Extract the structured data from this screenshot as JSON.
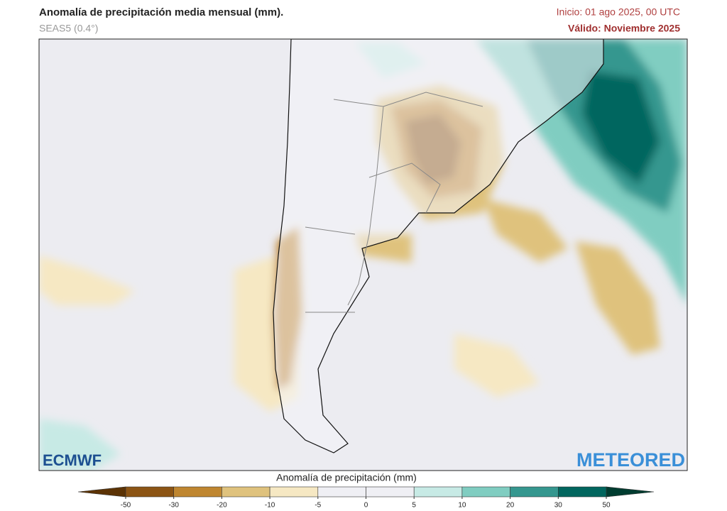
{
  "header": {
    "title": "Anomalía de precipitación media mensual (mm).",
    "subtitle": "SEAS5 (0.4°)",
    "init": "Inicio: 01 ago 2025, 00 UTC",
    "valid": "Válido: Noviembre 2025"
  },
  "logos": {
    "left": "ECMWF",
    "right": "METEORED"
  },
  "legend": {
    "title": "Anomalía de precipitación (mm)",
    "ticks": [
      -50,
      -30,
      -20,
      -10,
      -5,
      0,
      5,
      10,
      20,
      30,
      50
    ],
    "colors": [
      "#5c3305",
      "#8c5414",
      "#bf8630",
      "#dfc27d",
      "#f6e8c3",
      "#efeff4",
      "#efeff4",
      "#c7eae5",
      "#80cdc1",
      "#35978f",
      "#01665e",
      "#003c30"
    ]
  }
}
